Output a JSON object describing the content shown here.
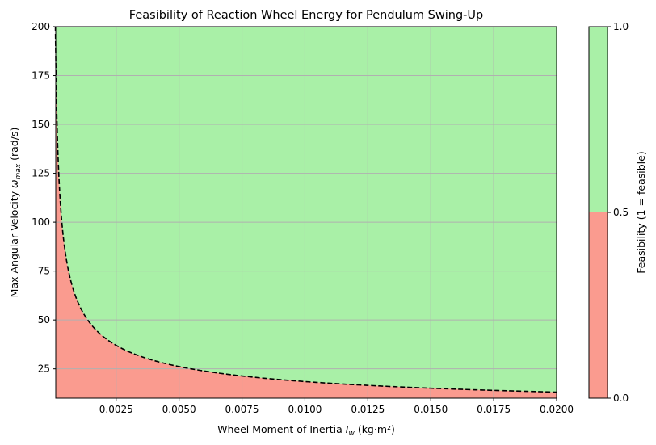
{
  "chart_data": {
    "type": "heatmap",
    "title": "Feasibility of Reaction Wheel Energy for Pendulum Swing-Up",
    "xlabel": "Wheel Moment of Inertia I_w (kg·m²)",
    "xlabel_parts": {
      "pre": "Wheel Moment of Inertia ",
      "sym": "I",
      "sub": "w",
      "post": " (kg·m²)"
    },
    "ylabel": "Max Angular Velocity ω_max (rad/s)",
    "ylabel_parts": {
      "pre": "Max Angular Velocity ",
      "sym": "ω",
      "sub": "max",
      "post": " (rad/s)"
    },
    "xlim": [
      0.0001,
      0.02
    ],
    "ylim": [
      10,
      200
    ],
    "x_ticks": [
      0.0025,
      0.005,
      0.0075,
      0.01,
      0.0125,
      0.015,
      0.0175,
      0.02
    ],
    "x_tick_labels": [
      "0.0025",
      "0.0050",
      "0.0075",
      "0.0100",
      "0.0125",
      "0.0150",
      "0.0175",
      "0.0200"
    ],
    "y_ticks": [
      25,
      50,
      75,
      100,
      125,
      150,
      175,
      200
    ],
    "y_tick_labels": [
      "25",
      "50",
      "75",
      "100",
      "125",
      "150",
      "175",
      "200"
    ],
    "grid": true,
    "boundary": {
      "style": "dashed",
      "color": "#000000",
      "relation": "omega_max = k / sqrt(I_w)",
      "k": 1.85,
      "points": [
        {
          "x": 0.00012,
          "y": 168.9
        },
        {
          "x": 0.0005,
          "y": 82.7
        },
        {
          "x": 0.001,
          "y": 58.5
        },
        {
          "x": 0.0025,
          "y": 37.0
        },
        {
          "x": 0.005,
          "y": 26.2
        },
        {
          "x": 0.0075,
          "y": 21.4
        },
        {
          "x": 0.01,
          "y": 18.5
        },
        {
          "x": 0.0125,
          "y": 16.5
        },
        {
          "x": 0.015,
          "y": 15.1
        },
        {
          "x": 0.0175,
          "y": 14.0
        },
        {
          "x": 0.02,
          "y": 13.1
        }
      ]
    },
    "regions": [
      {
        "value": 0,
        "color": "#fa9b8f",
        "position": "below boundary"
      },
      {
        "value": 1,
        "color": "#a9f0a7",
        "position": "above boundary"
      }
    ],
    "colorbar": {
      "label": "Feasibility (1 = feasible)",
      "range": [
        0,
        1
      ],
      "ticks": [
        0,
        0.5,
        1
      ],
      "tick_labels": [
        "0.0",
        "0.5",
        "1.0"
      ],
      "split": 0.5,
      "colors": {
        "low": "#fa9b8f",
        "high": "#a9f0a7"
      }
    }
  }
}
